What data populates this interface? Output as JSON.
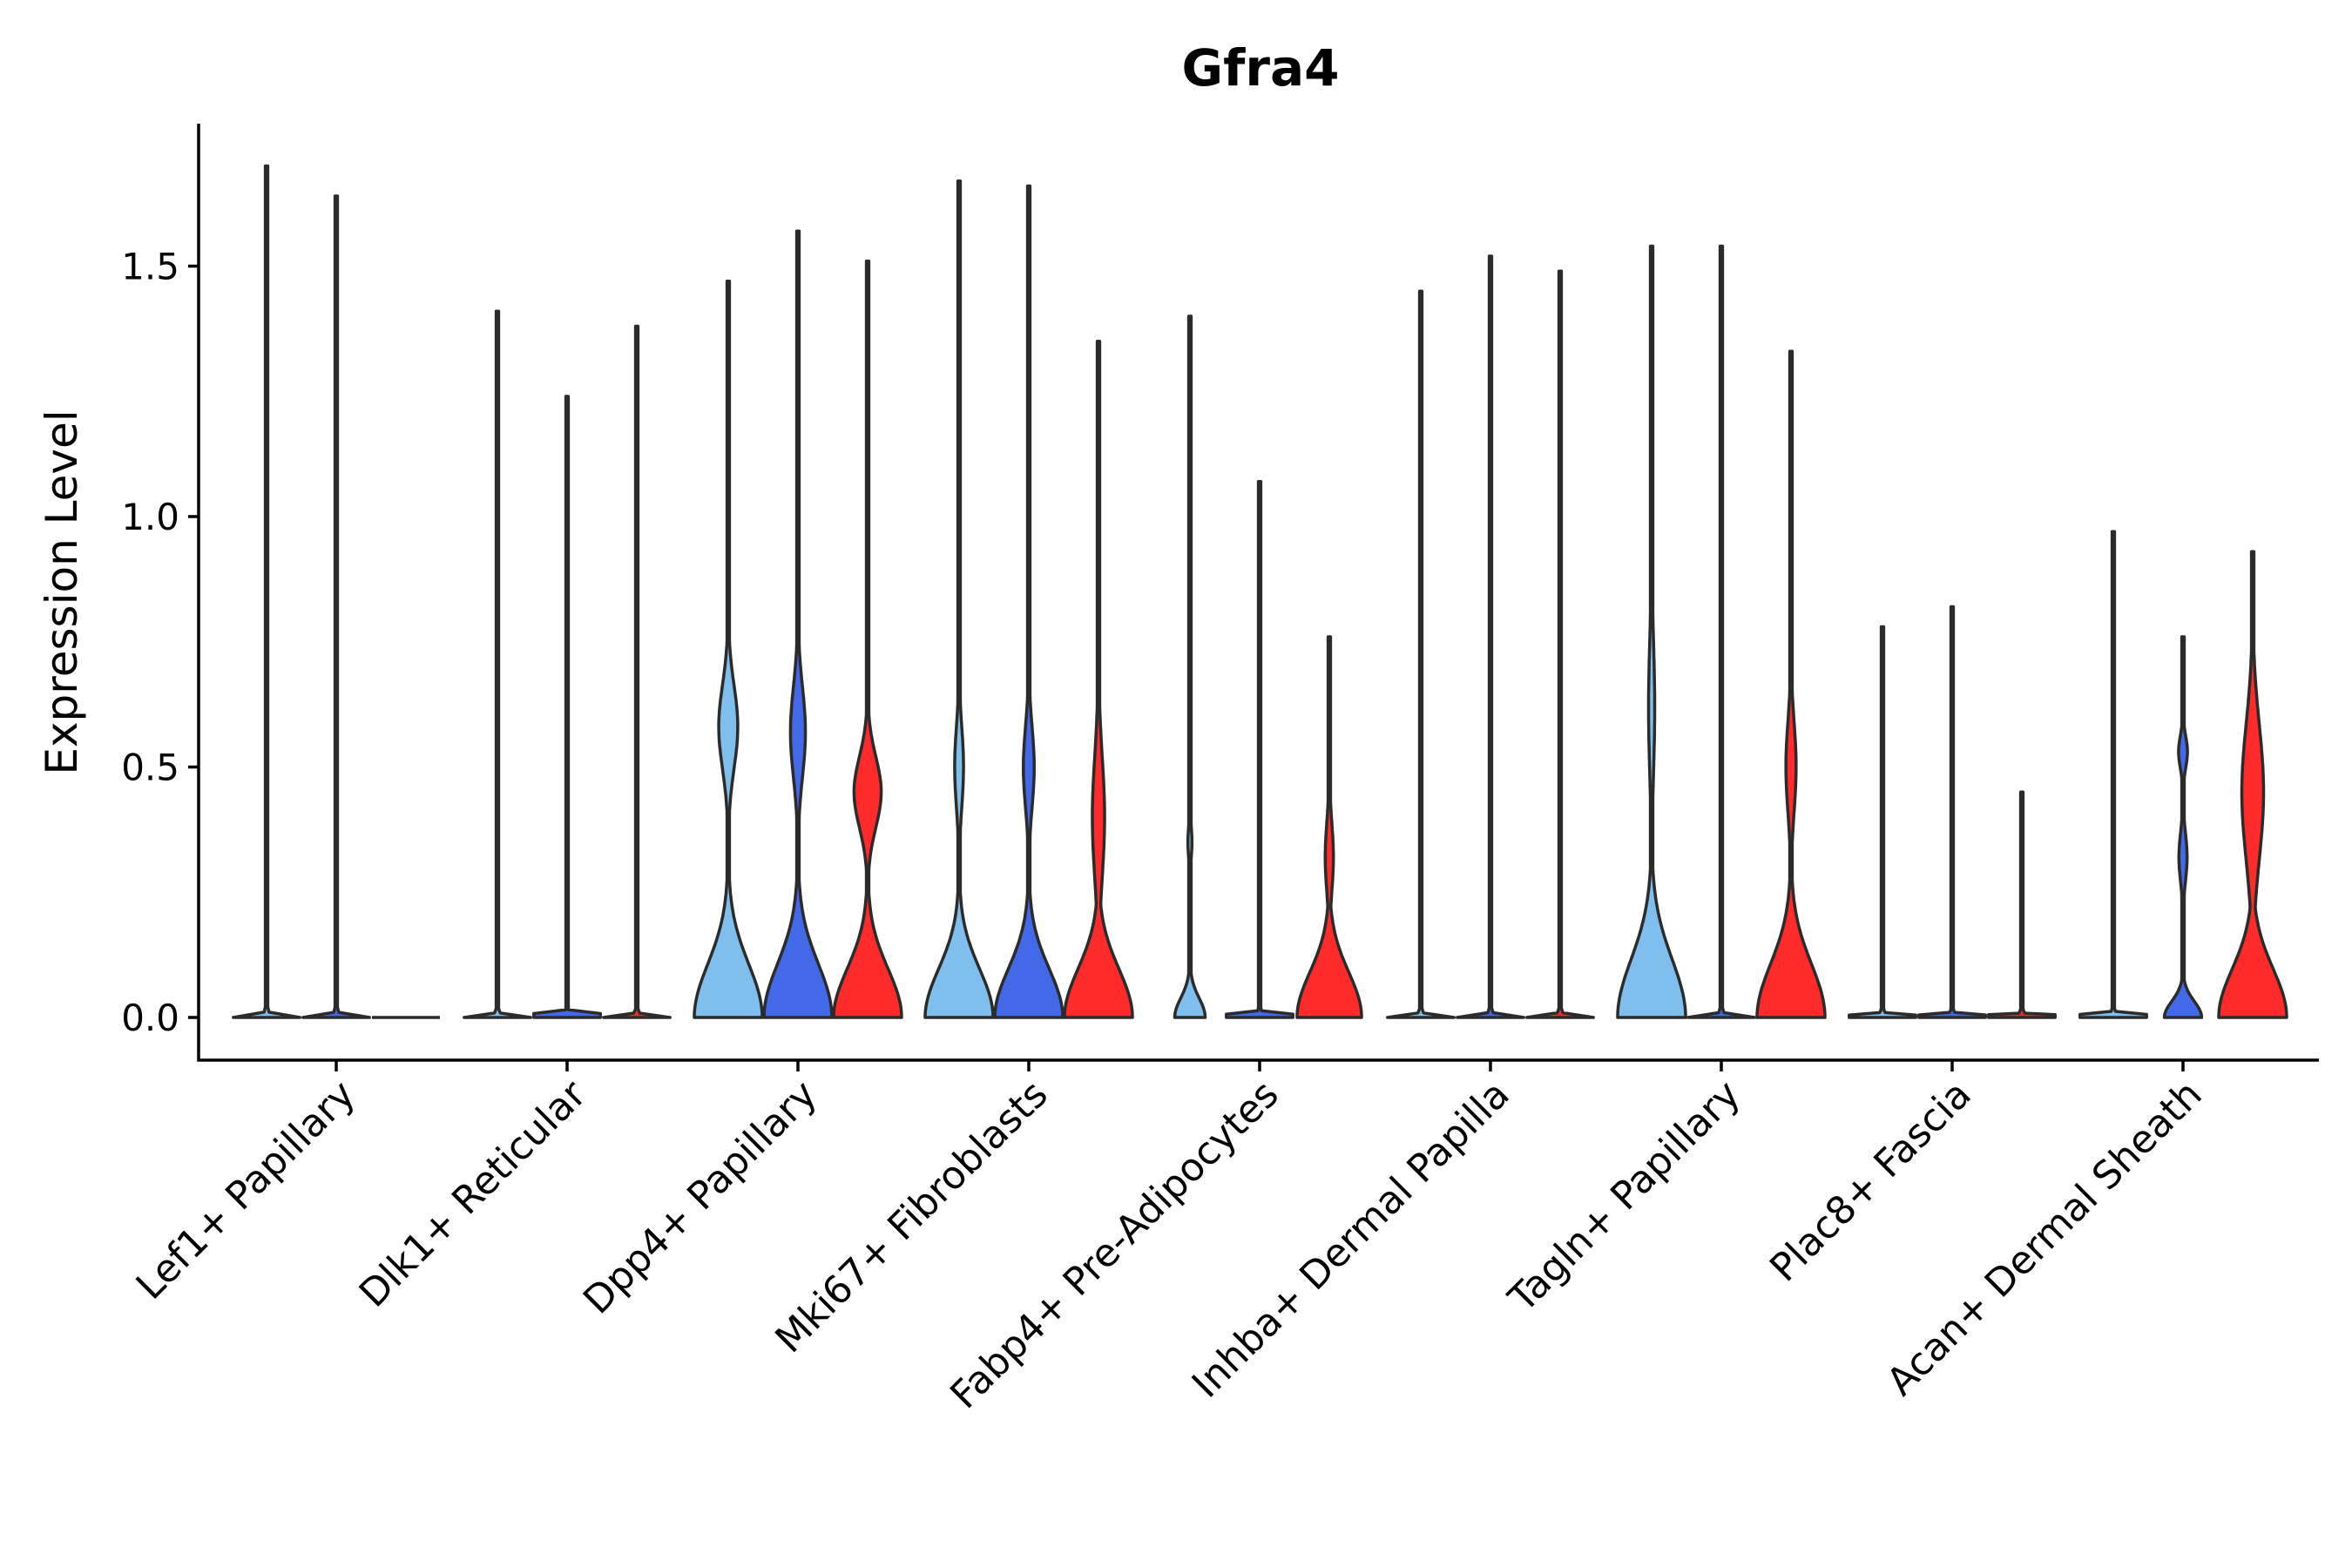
{
  "chart_data": {
    "type": "violin",
    "title": "Gfra4",
    "xlabel": "",
    "ylabel": "Expression Level",
    "ylim": [
      -0.085,
      1.78
    ],
    "yticks": [
      0.0,
      0.5,
      1.0,
      1.5
    ],
    "ytick_labels": [
      "0.0",
      "0.5",
      "1.0",
      "1.5"
    ],
    "grid": false,
    "legend": "none",
    "group_colors": [
      "#7fbfed",
      "#426ae8",
      "#ff2a2a"
    ],
    "categories": [
      {
        "label": "Lef1+ Papillary",
        "violins": [
          {
            "group": 0,
            "max": 1.7,
            "bulbs": []
          },
          {
            "group": 1,
            "max": 1.64,
            "bulbs": []
          },
          {
            "group": 2,
            "max": 0,
            "bulbs": []
          }
        ]
      },
      {
        "label": "Dlk1+ Reticular",
        "violins": [
          {
            "group": 0,
            "max": 1.41,
            "bulbs": []
          },
          {
            "group": 1,
            "max": 1.24,
            "bulbs": []
          },
          {
            "group": 2,
            "max": 1.38,
            "bulbs": []
          }
        ]
      },
      {
        "label": "Dpp4+ Papillary",
        "violins": [
          {
            "group": 0,
            "max": 1.47,
            "bulbs": [
              {
                "c": 0.0,
                "h": 0.33,
                "w": 1.0
              },
              {
                "c": 0.58,
                "h": 0.26,
                "w": 0.28
              }
            ]
          },
          {
            "group": 1,
            "max": 1.57,
            "bulbs": [
              {
                "c": 0.0,
                "h": 0.33,
                "w": 1.0
              },
              {
                "c": 0.57,
                "h": 0.28,
                "w": 0.22
              }
            ]
          },
          {
            "group": 2,
            "max": 1.51,
            "bulbs": [
              {
                "c": 0.0,
                "h": 0.3,
                "w": 1.0
              },
              {
                "c": 0.45,
                "h": 0.22,
                "w": 0.4
              }
            ]
          }
        ]
      },
      {
        "label": "Mki67+ Fibroblasts",
        "violins": [
          {
            "group": 0,
            "max": 1.67,
            "bulbs": [
              {
                "c": 0.0,
                "h": 0.3,
                "w": 1.0
              },
              {
                "c": 0.5,
                "h": 0.25,
                "w": 0.13
              }
            ]
          },
          {
            "group": 1,
            "max": 1.66,
            "bulbs": [
              {
                "c": 0.0,
                "h": 0.3,
                "w": 1.0
              },
              {
                "c": 0.5,
                "h": 0.25,
                "w": 0.16
              }
            ]
          },
          {
            "group": 2,
            "max": 1.35,
            "bulbs": [
              {
                "c": 0.0,
                "h": 0.3,
                "w": 1.0
              },
              {
                "c": 0.4,
                "h": 0.38,
                "w": 0.18
              }
            ]
          }
        ]
      },
      {
        "label": "Fabp4+ Pre-Adipocytes",
        "violins": [
          {
            "group": 0,
            "max": 1.4,
            "bulbs": [
              {
                "c": 0.0,
                "h": 0.12,
                "w": 0.45
              },
              {
                "c": 0.35,
                "h": 0.1,
                "w": 0.06
              }
            ]
          },
          {
            "group": 1,
            "max": 1.07,
            "bulbs": []
          },
          {
            "group": 2,
            "max": 0.76,
            "bulbs": [
              {
                "c": 0.0,
                "h": 0.28,
                "w": 0.95
              },
              {
                "c": 0.32,
                "h": 0.22,
                "w": 0.12
              }
            ]
          }
        ]
      },
      {
        "label": "Inhba+ Dermal Papilla",
        "violins": [
          {
            "group": 0,
            "max": 1.45,
            "bulbs": []
          },
          {
            "group": 1,
            "max": 1.52,
            "bulbs": []
          },
          {
            "group": 2,
            "max": 1.49,
            "bulbs": []
          }
        ]
      },
      {
        "label": "Tagln+ Papillary",
        "violins": [
          {
            "group": 0,
            "max": 1.54,
            "bulbs": [
              {
                "c": 0.0,
                "h": 0.36,
                "w": 1.0
              },
              {
                "c": 0.62,
                "h": 0.42,
                "w": 0.09
              }
            ]
          },
          {
            "group": 1,
            "max": 1.54,
            "bulbs": []
          },
          {
            "group": 2,
            "max": 1.33,
            "bulbs": [
              {
                "c": 0.0,
                "h": 0.33,
                "w": 1.0
              },
              {
                "c": 0.5,
                "h": 0.28,
                "w": 0.15
              }
            ]
          }
        ]
      },
      {
        "label": "Plac8+ Fascia",
        "violins": [
          {
            "group": 0,
            "max": 0.78,
            "bulbs": []
          },
          {
            "group": 1,
            "max": 0.82,
            "bulbs": []
          },
          {
            "group": 2,
            "max": 0.45,
            "bulbs": []
          }
        ]
      },
      {
        "label": "Acan+ Dermal Sheath",
        "violins": [
          {
            "group": 0,
            "max": 0.97,
            "bulbs": []
          },
          {
            "group": 1,
            "max": 0.76,
            "bulbs": [
              {
                "c": 0.0,
                "h": 0.1,
                "w": 0.55
              },
              {
                "c": 0.32,
                "h": 0.15,
                "w": 0.12
              },
              {
                "c": 0.53,
                "h": 0.1,
                "w": 0.13
              }
            ]
          },
          {
            "group": 2,
            "max": 0.93,
            "bulbs": [
              {
                "c": 0.0,
                "h": 0.3,
                "w": 1.0
              },
              {
                "c": 0.45,
                "h": 0.42,
                "w": 0.32
              }
            ]
          }
        ]
      }
    ]
  }
}
